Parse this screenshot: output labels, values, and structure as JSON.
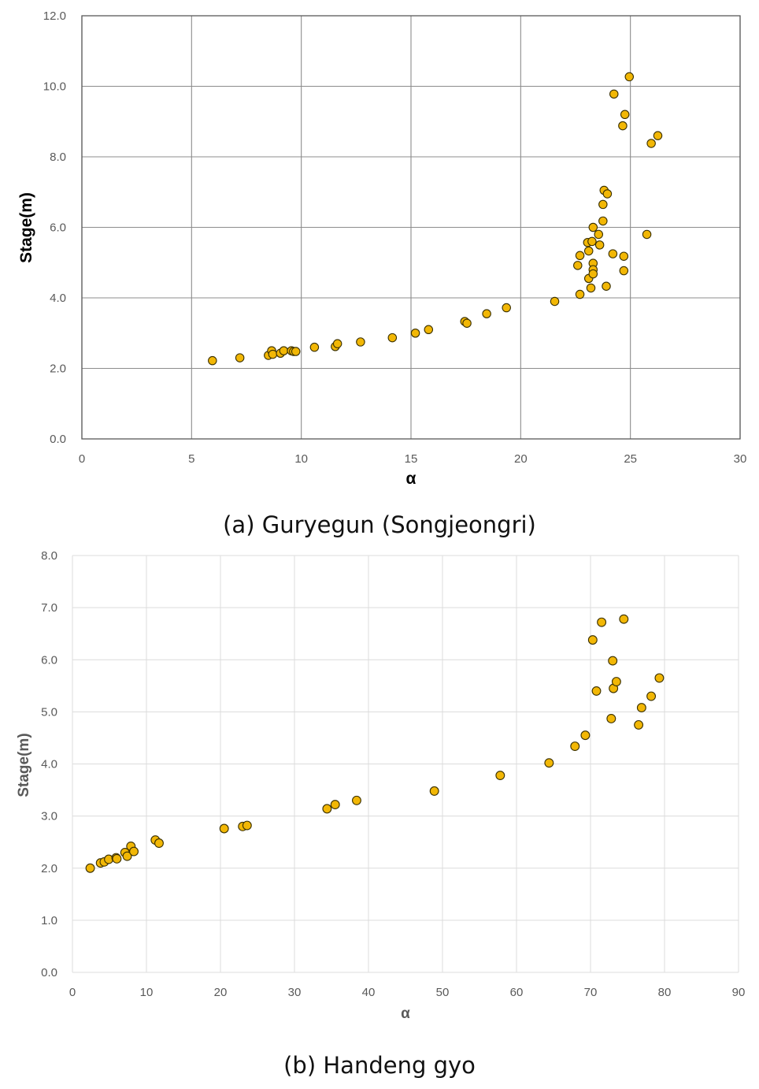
{
  "chart_data": [
    {
      "type": "scatter",
      "caption": "(a) Guryegun (Songjeongri)",
      "xlabel": "α",
      "ylabel": "Stage(m)",
      "xlim": [
        0,
        30
      ],
      "ylim": [
        0,
        12
      ],
      "x_ticks": [
        "0",
        "5",
        "10",
        "15",
        "20",
        "25",
        "30"
      ],
      "y_ticks": [
        "0.0",
        "2.0",
        "4.0",
        "6.0",
        "8.0",
        "10.0",
        "12.0"
      ],
      "grid": "major gridlines on both axes",
      "legend": "none",
      "marker_color": "#F2B705",
      "points": [
        [
          5.95,
          2.22
        ],
        [
          7.2,
          2.3
        ],
        [
          8.5,
          2.37
        ],
        [
          8.65,
          2.5
        ],
        [
          8.7,
          2.4
        ],
        [
          9.05,
          2.43
        ],
        [
          9.2,
          2.5
        ],
        [
          9.55,
          2.5
        ],
        [
          9.65,
          2.48
        ],
        [
          9.75,
          2.48
        ],
        [
          10.6,
          2.6
        ],
        [
          11.55,
          2.62
        ],
        [
          11.65,
          2.7
        ],
        [
          12.7,
          2.75
        ],
        [
          14.15,
          2.87
        ],
        [
          15.2,
          3.0
        ],
        [
          15.8,
          3.1
        ],
        [
          17.45,
          3.33
        ],
        [
          17.55,
          3.28
        ],
        [
          18.45,
          3.55
        ],
        [
          19.35,
          3.72
        ],
        [
          21.55,
          3.9
        ],
        [
          22.6,
          4.92
        ],
        [
          22.7,
          5.2
        ],
        [
          22.7,
          4.1
        ],
        [
          23.05,
          5.57
        ],
        [
          23.1,
          5.33
        ],
        [
          23.1,
          4.55
        ],
        [
          23.2,
          4.28
        ],
        [
          23.25,
          5.6
        ],
        [
          23.3,
          6.0
        ],
        [
          23.3,
          4.98
        ],
        [
          23.3,
          4.8
        ],
        [
          23.3,
          4.68
        ],
        [
          23.55,
          5.8
        ],
        [
          23.6,
          5.5
        ],
        [
          23.75,
          6.18
        ],
        [
          23.75,
          6.65
        ],
        [
          23.8,
          7.05
        ],
        [
          23.9,
          4.33
        ],
        [
          23.95,
          6.95
        ],
        [
          24.2,
          5.25
        ],
        [
          24.25,
          9.78
        ],
        [
          24.65,
          8.88
        ],
        [
          24.7,
          5.18
        ],
        [
          24.7,
          4.77
        ],
        [
          24.75,
          9.2
        ],
        [
          24.95,
          10.27
        ],
        [
          25.75,
          5.8
        ],
        [
          25.95,
          8.38
        ],
        [
          26.25,
          8.6
        ]
      ]
    },
    {
      "type": "scatter",
      "caption": "(b) Handeng gyo",
      "xlabel": "α",
      "ylabel": "Stage(m)",
      "xlim": [
        0,
        90
      ],
      "ylim": [
        0,
        8
      ],
      "x_ticks": [
        "0",
        "10",
        "20",
        "30",
        "40",
        "50",
        "60",
        "70",
        "80",
        "90"
      ],
      "y_ticks": [
        "0.0",
        "1.0",
        "2.0",
        "3.0",
        "4.0",
        "5.0",
        "6.0",
        "7.0",
        "8.0"
      ],
      "grid": "major gridlines on both axes",
      "legend": "none",
      "marker_color": "#F2B705",
      "points": [
        [
          2.4,
          2.0
        ],
        [
          3.8,
          2.1
        ],
        [
          4.3,
          2.12
        ],
        [
          4.9,
          2.17
        ],
        [
          5.9,
          2.2
        ],
        [
          6.0,
          2.18
        ],
        [
          7.1,
          2.3
        ],
        [
          7.4,
          2.23
        ],
        [
          7.9,
          2.42
        ],
        [
          8.3,
          2.32
        ],
        [
          11.2,
          2.54
        ],
        [
          11.7,
          2.48
        ],
        [
          20.5,
          2.76
        ],
        [
          23.0,
          2.8
        ],
        [
          23.6,
          2.82
        ],
        [
          34.4,
          3.14
        ],
        [
          35.5,
          3.22
        ],
        [
          38.4,
          3.3
        ],
        [
          48.9,
          3.48
        ],
        [
          57.8,
          3.78
        ],
        [
          64.4,
          4.02
        ],
        [
          67.9,
          4.34
        ],
        [
          69.3,
          4.55
        ],
        [
          70.3,
          6.38
        ],
        [
          70.8,
          5.4
        ],
        [
          71.5,
          6.72
        ],
        [
          72.8,
          4.87
        ],
        [
          73.0,
          5.98
        ],
        [
          73.1,
          5.45
        ],
        [
          73.5,
          5.58
        ],
        [
          74.5,
          6.78
        ],
        [
          76.5,
          4.75
        ],
        [
          76.9,
          5.08
        ],
        [
          78.2,
          5.3
        ],
        [
          79.3,
          5.65
        ]
      ]
    }
  ]
}
